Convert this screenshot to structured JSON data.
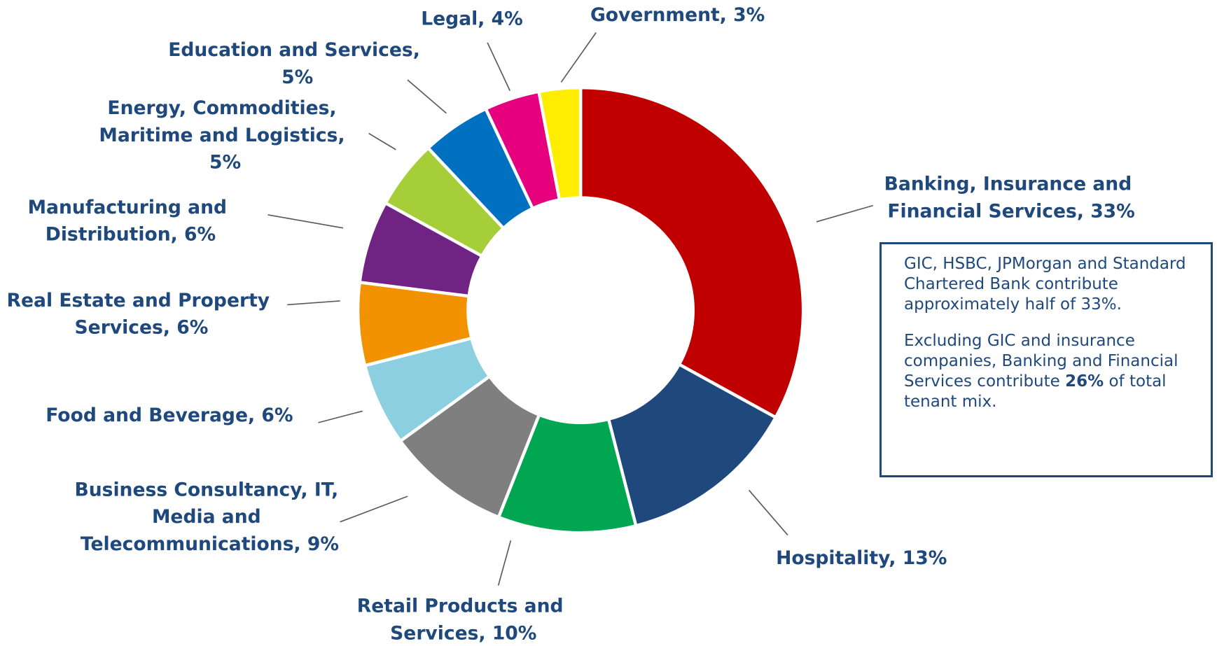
{
  "chart_data": {
    "type": "donut",
    "categories": [
      "Banking, Insurance and Financial Services, 33%",
      "Hospitality, 13%",
      "Retail Products and Services, 10%",
      "Business Consultancy, IT, Media and Telecommunications, 9%",
      "Food and Beverage, 6%",
      "Real Estate and Property Services, 6%",
      "Manufacturing and Distribution, 6%",
      "Energy, Commodities, Maritime and Logistics, 5%",
      "Education and Services, 5%",
      "Legal, 4%",
      "Government, 3%"
    ],
    "values": [
      33,
      13,
      10,
      9,
      6,
      6,
      6,
      5,
      5,
      4,
      3
    ],
    "colors": [
      "#c00000",
      "#1f497d",
      "#00a651",
      "#7f7f7f",
      "#8ccfe0",
      "#f39200",
      "#6f2382",
      "#a6ce39",
      "#0070c0",
      "#e6007e",
      "#ffed00"
    ],
    "note": {
      "paragraph_1": "GIC, HSBC, JPMorgan and Standard Chartered Bank contribute approximately half of 33%.",
      "paragraph_2_start": "Excluding GIC and insurance companies, Banking and Financial Services contribute",
      "paragraph_2_bold": "26%",
      "paragraph_2_end": "of total tenant mix."
    }
  }
}
